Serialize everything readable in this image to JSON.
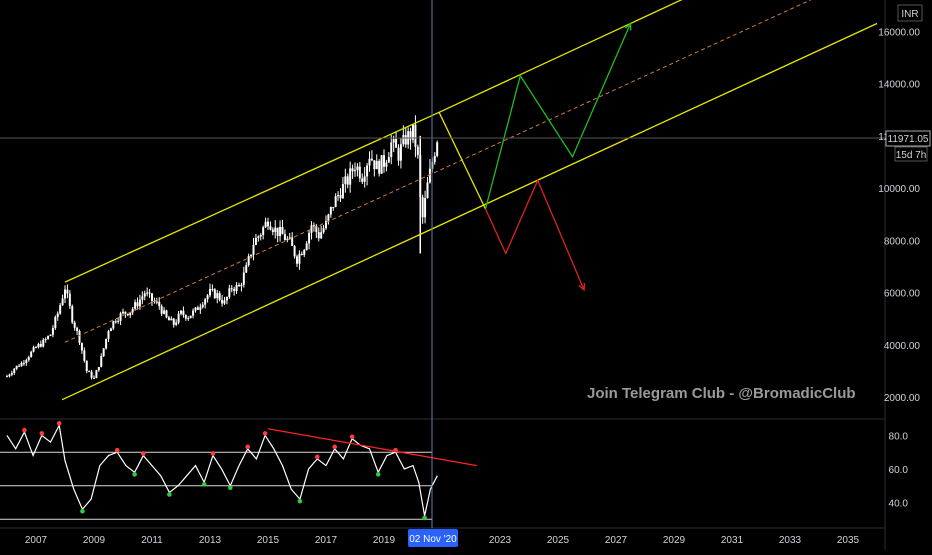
{
  "currency": "INR",
  "watermark": "Join Telegram Club - @BromadicClub",
  "price_label": "11971.05",
  "countdown_label": "15d 7h",
  "crosshair_date_label": "02 Nov '20",
  "colors": {
    "background": "#000000",
    "channel": "#e6e600",
    "midline": "#c87a3a",
    "bull_path": "#22bb22",
    "bear_path": "#dd2222",
    "rsi_trend": "#ff2222",
    "candle": "#ffffff",
    "crosshair": "#5a7fb0",
    "rsi_level": "#ffffff",
    "rsi_line": "#ffffff",
    "marker_high": "#ff3b3b",
    "marker_low": "#2ecc40"
  },
  "chart_data": [
    {
      "type": "candlestick",
      "name": "price",
      "x_ticks": [
        "2007",
        "2009",
        "2011",
        "2013",
        "2015",
        "2017",
        "2019",
        "2023",
        "2025",
        "2027",
        "2029",
        "2031",
        "2033",
        "2035"
      ],
      "y_ticks": [
        "16000.00",
        "14000.00",
        "12000.00",
        "10000.00",
        "8000.00",
        "6000.00",
        "4000.00",
        "2000.00"
      ],
      "ylim": [
        1200,
        17200
      ],
      "x": [
        2006.0,
        2006.25,
        2006.5,
        2006.75,
        2007.0,
        2007.25,
        2007.5,
        2007.75,
        2008.0,
        2008.25,
        2008.5,
        2008.75,
        2009.0,
        2009.25,
        2009.5,
        2009.75,
        2010.0,
        2010.25,
        2010.5,
        2010.75,
        2011.0,
        2011.25,
        2011.5,
        2011.75,
        2012.0,
        2012.25,
        2012.5,
        2012.75,
        2013.0,
        2013.25,
        2013.5,
        2013.75,
        2014.0,
        2014.25,
        2014.5,
        2014.75,
        2015.0,
        2015.25,
        2015.5,
        2015.75,
        2016.0,
        2016.25,
        2016.5,
        2016.75,
        2017.0,
        2017.25,
        2017.5,
        2017.75,
        2018.0,
        2018.25,
        2018.5,
        2018.75,
        2019.0,
        2019.25,
        2019.5,
        2019.75,
        2020.0,
        2020.15,
        2020.3,
        2020.5,
        2020.7,
        2020.84
      ],
      "values": [
        2800,
        3100,
        3300,
        3600,
        3900,
        4100,
        4400,
        5200,
        6200,
        5000,
        4200,
        3000,
        2700,
        3500,
        4600,
        5000,
        5200,
        5300,
        5600,
        6000,
        5700,
        5500,
        5000,
        4800,
        5200,
        5100,
        5300,
        5700,
        6000,
        5900,
        5600,
        6200,
        6200,
        6900,
        7900,
        8300,
        8800,
        8400,
        8200,
        7900,
        7300,
        7800,
        8600,
        8200,
        8600,
        9400,
        9900,
        10300,
        10900,
        10500,
        11300,
        10800,
        11000,
        11700,
        11300,
        11900,
        12100,
        11400,
        8600,
        10100,
        11200,
        11971
      ]
    },
    {
      "type": "line",
      "name": "channel",
      "series": [
        {
          "x": [
            2008.0,
            2020.9,
            2030.6
          ],
          "values": [
            6400,
            12900,
            17900
          ]
        },
        {
          "x": [
            2007.9,
            2036.0
          ],
          "values": [
            1900,
            16300
          ]
        },
        {
          "x": [
            2008.0,
            2034.0
          ],
          "values": [
            4100,
            17350
          ]
        }
      ]
    },
    {
      "type": "line",
      "name": "projection",
      "series": [
        {
          "x": [
            2020.9,
            2022.5,
            2023.7,
            2025.5,
            2027.5
          ],
          "values": [
            12900,
            9200,
            14300,
            11200,
            16300
          ]
        },
        {
          "x": [
            2022.5,
            2023.2,
            2024.3,
            2025.9
          ],
          "values": [
            9200,
            7500,
            10300,
            6100
          ]
        }
      ]
    },
    {
      "type": "line",
      "name": "rsi",
      "y_ticks": [
        "80.0",
        "60.0",
        "40.0"
      ],
      "levels": [
        70,
        50,
        30
      ],
      "ylim": [
        26,
        88
      ],
      "x": [
        2006.0,
        2006.3,
        2006.6,
        2006.9,
        2007.2,
        2007.5,
        2007.8,
        2008.0,
        2008.3,
        2008.6,
        2008.9,
        2009.2,
        2009.5,
        2009.8,
        2010.1,
        2010.4,
        2010.7,
        2011.0,
        2011.3,
        2011.6,
        2011.9,
        2012.2,
        2012.5,
        2012.8,
        2013.1,
        2013.4,
        2013.7,
        2014.0,
        2014.3,
        2014.6,
        2014.9,
        2015.2,
        2015.5,
        2015.8,
        2016.1,
        2016.4,
        2016.7,
        2017.0,
        2017.3,
        2017.6,
        2017.9,
        2018.2,
        2018.5,
        2018.8,
        2019.1,
        2019.4,
        2019.7,
        2020.0,
        2020.2,
        2020.4,
        2020.6,
        2020.84
      ],
      "values": [
        80,
        72,
        82,
        68,
        80,
        76,
        86,
        65,
        48,
        36,
        42,
        62,
        68,
        70,
        62,
        58,
        68,
        62,
        56,
        46,
        50,
        56,
        62,
        52,
        68,
        60,
        50,
        62,
        72,
        66,
        80,
        72,
        62,
        48,
        42,
        60,
        66,
        62,
        72,
        66,
        78,
        74,
        72,
        58,
        68,
        70,
        60,
        62,
        52,
        32,
        48,
        56
      ]
    },
    {
      "type": "line",
      "name": "rsi_trend",
      "series": [
        {
          "x": [
            2015.0,
            2022.2
          ],
          "values": [
            84,
            62
          ]
        }
      ]
    }
  ]
}
